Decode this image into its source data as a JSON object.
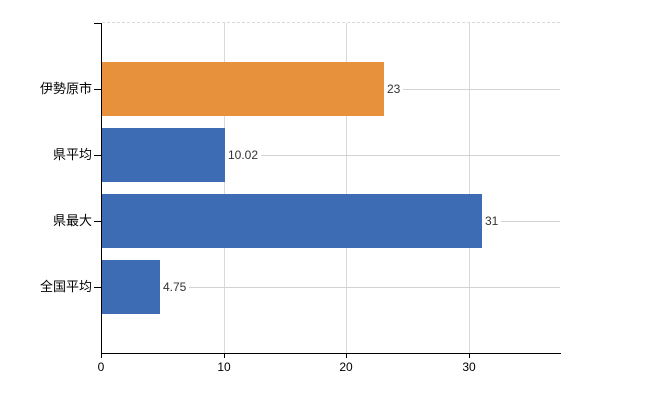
{
  "chart": {
    "background_color": "#ffffff",
    "axis_color": "#000000",
    "gridline_color": "#d9d9d9",
    "leader_line_color": "#d3d3d3",
    "category_text_color": "#000000",
    "value_text_color": "#333333"
  },
  "chart_data": {
    "type": "bar",
    "orientation": "horizontal",
    "categories": [
      "伊勢原市",
      "県平均",
      "県最大",
      "全国平均"
    ],
    "values": [
      23,
      10.02,
      31,
      4.75
    ],
    "value_labels": [
      "23",
      "10.02",
      "31",
      "4.75"
    ],
    "bar_colors": [
      "#e8913c",
      "#3d6bb4",
      "#3d6bb4",
      "#3d6bb4"
    ],
    "x_tick_values": [
      0,
      10,
      20,
      30
    ],
    "x_tick_labels": [
      "0",
      "10",
      "20",
      "30"
    ],
    "xlim": [
      0,
      37.4
    ],
    "grid": true,
    "legend": "none",
    "title": ""
  }
}
